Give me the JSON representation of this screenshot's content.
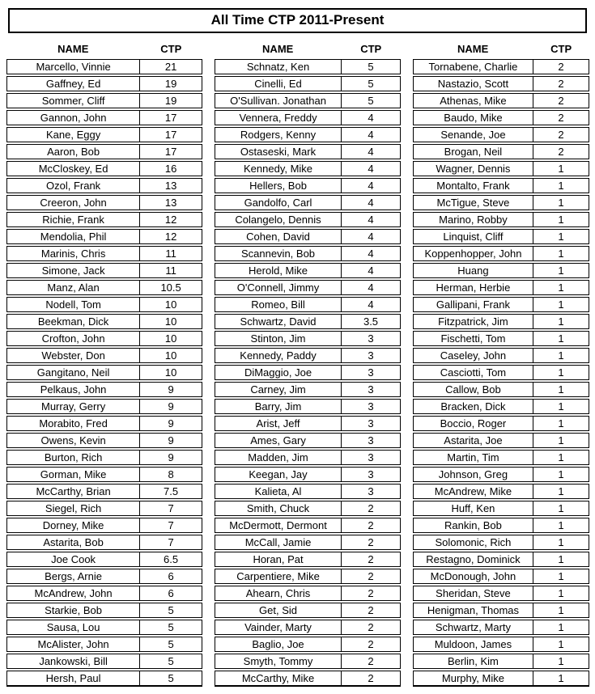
{
  "title": "All Time CTP 2011-Present",
  "header": {
    "name": "NAME",
    "ctp": "CTP"
  },
  "colors": {
    "border": "#000000",
    "text": "#000000",
    "background": "#ffffff"
  },
  "tables": [
    {
      "rows": [
        {
          "name": "Marcello, Vinnie",
          "ctp": "21"
        },
        {
          "name": "Gaffney, Ed",
          "ctp": "19"
        },
        {
          "name": "Sommer, Cliff",
          "ctp": "19"
        },
        {
          "name": "Gannon, John",
          "ctp": "17"
        },
        {
          "name": "Kane, Eggy",
          "ctp": "17"
        },
        {
          "name": "Aaron, Bob",
          "ctp": "17"
        },
        {
          "name": "McCloskey, Ed",
          "ctp": "16"
        },
        {
          "name": "Ozol, Frank",
          "ctp": "13"
        },
        {
          "name": "Creeron, John",
          "ctp": "13"
        },
        {
          "name": "Richie, Frank",
          "ctp": "12"
        },
        {
          "name": "Mendolia, Phil",
          "ctp": "12"
        },
        {
          "name": "Marinis, Chris",
          "ctp": "11"
        },
        {
          "name": "Simone, Jack",
          "ctp": "11"
        },
        {
          "name": "Manz, Alan",
          "ctp": "10.5"
        },
        {
          "name": "Nodell, Tom",
          "ctp": "10"
        },
        {
          "name": "Beekman, Dick",
          "ctp": "10"
        },
        {
          "name": "Crofton, John",
          "ctp": "10"
        },
        {
          "name": "Webster, Don",
          "ctp": "10"
        },
        {
          "name": "Gangitano, Neil",
          "ctp": "10"
        },
        {
          "name": "Pelkaus, John",
          "ctp": "9"
        },
        {
          "name": "Murray, Gerry",
          "ctp": "9"
        },
        {
          "name": "Morabito, Fred",
          "ctp": "9"
        },
        {
          "name": "Owens, Kevin",
          "ctp": "9"
        },
        {
          "name": "Burton, Rich",
          "ctp": "9"
        },
        {
          "name": "Gorman, Mike",
          "ctp": "8"
        },
        {
          "name": "McCarthy, Brian",
          "ctp": "7.5"
        },
        {
          "name": "Siegel, Rich",
          "ctp": "7"
        },
        {
          "name": "Dorney, Mike",
          "ctp": "7"
        },
        {
          "name": "Astarita, Bob",
          "ctp": "7"
        },
        {
          "name": "Joe Cook",
          "ctp": "6.5"
        },
        {
          "name": "Bergs, Arnie",
          "ctp": "6"
        },
        {
          "name": "McAndrew, John",
          "ctp": "6"
        },
        {
          "name": "Starkie, Bob",
          "ctp": "5"
        },
        {
          "name": "Sausa, Lou",
          "ctp": "5"
        },
        {
          "name": "McAlister, John",
          "ctp": "5"
        },
        {
          "name": "Jankowski, Bill",
          "ctp": "5"
        },
        {
          "name": "Hersh, Paul",
          "ctp": "5"
        }
      ]
    },
    {
      "rows": [
        {
          "name": "Schnatz, Ken",
          "ctp": "5"
        },
        {
          "name": "Cinelli, Ed",
          "ctp": "5"
        },
        {
          "name": "O'Sullivan. Jonathan",
          "ctp": "5"
        },
        {
          "name": "Vennera, Freddy",
          "ctp": "4"
        },
        {
          "name": "Rodgers, Kenny",
          "ctp": "4"
        },
        {
          "name": "Ostaseski, Mark",
          "ctp": "4"
        },
        {
          "name": "Kennedy, Mike",
          "ctp": "4"
        },
        {
          "name": "Hellers, Bob",
          "ctp": "4"
        },
        {
          "name": "Gandolfo, Carl",
          "ctp": "4"
        },
        {
          "name": "Colangelo, Dennis",
          "ctp": "4"
        },
        {
          "name": "Cohen, David",
          "ctp": "4"
        },
        {
          "name": "Scannevin, Bob",
          "ctp": "4"
        },
        {
          "name": "Herold, Mike",
          "ctp": "4"
        },
        {
          "name": "O'Connell, Jimmy",
          "ctp": "4"
        },
        {
          "name": "Romeo, Bill",
          "ctp": "4"
        },
        {
          "name": "Schwartz, David",
          "ctp": "3.5"
        },
        {
          "name": "Stinton, Jim",
          "ctp": "3"
        },
        {
          "name": "Kennedy, Paddy",
          "ctp": "3"
        },
        {
          "name": "DiMaggio, Joe",
          "ctp": "3"
        },
        {
          "name": "Carney, Jim",
          "ctp": "3"
        },
        {
          "name": "Barry, Jim",
          "ctp": "3"
        },
        {
          "name": "Arist, Jeff",
          "ctp": "3"
        },
        {
          "name": "Ames, Gary",
          "ctp": "3"
        },
        {
          "name": "Madden, Jim",
          "ctp": "3"
        },
        {
          "name": "Keegan, Jay",
          "ctp": "3"
        },
        {
          "name": "Kalieta, Al",
          "ctp": "3"
        },
        {
          "name": "Smith, Chuck",
          "ctp": "2"
        },
        {
          "name": "McDermott, Dermont",
          "ctp": "2"
        },
        {
          "name": "McCall, Jamie",
          "ctp": "2"
        },
        {
          "name": "Horan, Pat",
          "ctp": "2"
        },
        {
          "name": "Carpentiere, Mike",
          "ctp": "2"
        },
        {
          "name": "Ahearn, Chris",
          "ctp": "2"
        },
        {
          "name": "Get, Sid",
          "ctp": "2"
        },
        {
          "name": "Vainder, Marty",
          "ctp": "2"
        },
        {
          "name": "Baglio, Joe",
          "ctp": "2"
        },
        {
          "name": "Smyth, Tommy",
          "ctp": "2"
        },
        {
          "name": "McCarthy, Mike",
          "ctp": "2"
        }
      ]
    },
    {
      "rows": [
        {
          "name": "Tornabene, Charlie",
          "ctp": "2"
        },
        {
          "name": "Nastazio, Scott",
          "ctp": "2"
        },
        {
          "name": "Athenas, Mike",
          "ctp": "2"
        },
        {
          "name": "Baudo, Mike",
          "ctp": "2"
        },
        {
          "name": "Senande, Joe",
          "ctp": "2"
        },
        {
          "name": "Brogan, Neil",
          "ctp": "2"
        },
        {
          "name": "Wagner, Dennis",
          "ctp": "1"
        },
        {
          "name": "Montalto, Frank",
          "ctp": "1"
        },
        {
          "name": "McTigue, Steve",
          "ctp": "1"
        },
        {
          "name": "Marino, Robby",
          "ctp": "1"
        },
        {
          "name": "Linquist, Cliff",
          "ctp": "1"
        },
        {
          "name": "Koppenhopper, John",
          "ctp": "1"
        },
        {
          "name": "Huang",
          "ctp": "1"
        },
        {
          "name": "Herman, Herbie",
          "ctp": "1"
        },
        {
          "name": "Gallipani, Frank",
          "ctp": "1"
        },
        {
          "name": "Fitzpatrick, Jim",
          "ctp": "1"
        },
        {
          "name": "Fischetti, Tom",
          "ctp": "1"
        },
        {
          "name": "Caseley, John",
          "ctp": "1"
        },
        {
          "name": "Casciotti, Tom",
          "ctp": "1"
        },
        {
          "name": "Callow, Bob",
          "ctp": "1"
        },
        {
          "name": "Bracken, Dick",
          "ctp": "1"
        },
        {
          "name": "Boccio, Roger",
          "ctp": "1"
        },
        {
          "name": "Astarita, Joe",
          "ctp": "1"
        },
        {
          "name": "Martin, Tim",
          "ctp": "1"
        },
        {
          "name": "Johnson, Greg",
          "ctp": "1"
        },
        {
          "name": "McAndrew, Mike",
          "ctp": "1"
        },
        {
          "name": "Huff, Ken",
          "ctp": "1"
        },
        {
          "name": "Rankin, Bob",
          "ctp": "1"
        },
        {
          "name": "Solomonic, Rich",
          "ctp": "1"
        },
        {
          "name": "Restagno, Dominick",
          "ctp": "1"
        },
        {
          "name": "McDonough, John",
          "ctp": "1"
        },
        {
          "name": "Sheridan, Steve",
          "ctp": "1"
        },
        {
          "name": "Henigman, Thomas",
          "ctp": "1"
        },
        {
          "name": "Schwartz, Marty",
          "ctp": "1"
        },
        {
          "name": "Muldoon, James",
          "ctp": "1"
        },
        {
          "name": "Berlin, Kim",
          "ctp": "1"
        },
        {
          "name": "Murphy, Mike",
          "ctp": "1"
        }
      ]
    }
  ]
}
